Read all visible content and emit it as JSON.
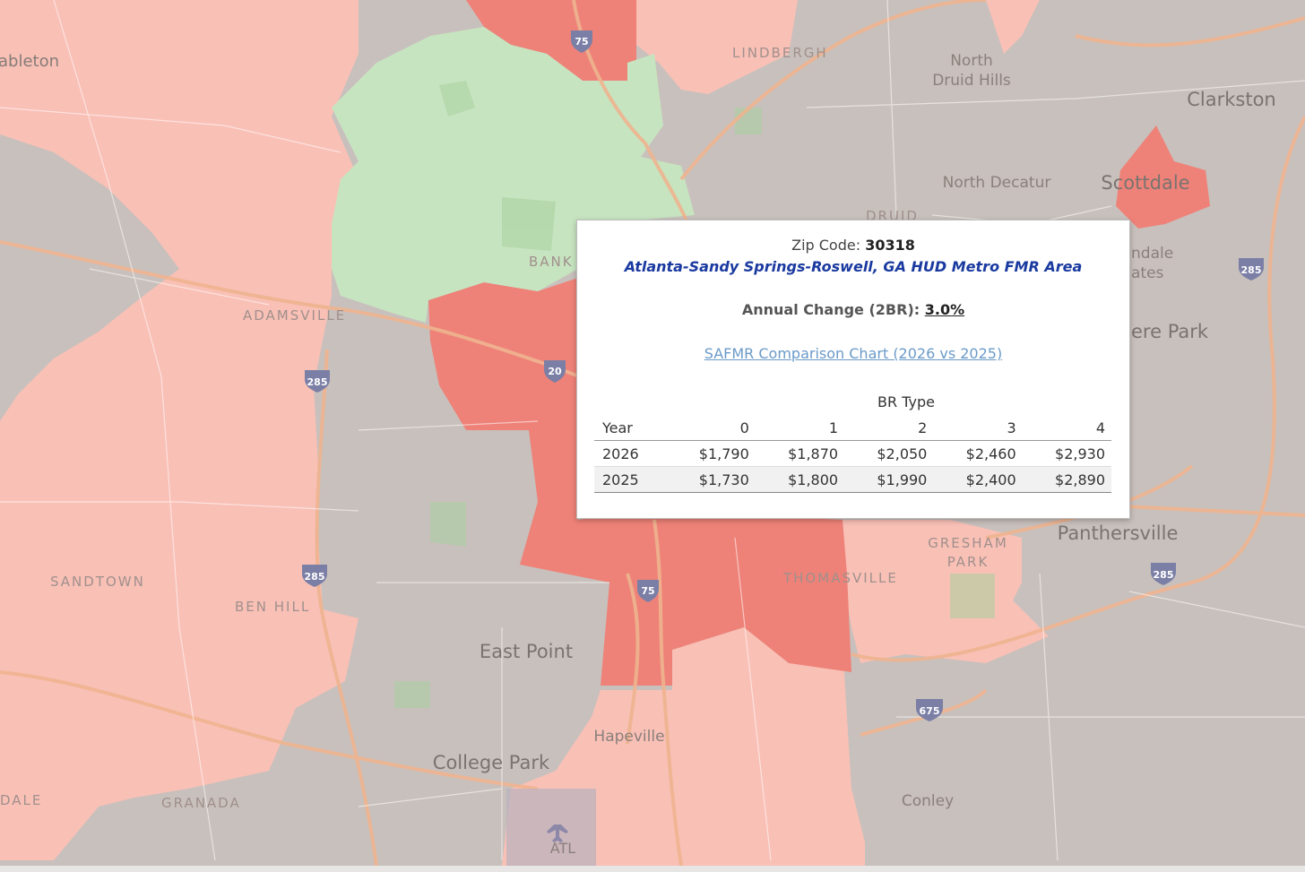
{
  "colors": {
    "base": "#c8c0bc",
    "light_red": "#f9c0b6",
    "mid_red": "#f4a89c",
    "dark_red": "#ee8278",
    "green": "#c7e4c0",
    "road": "#efb490",
    "tooltip_link": "#6a9ac8",
    "tooltip_area": "#1a3aa0"
  },
  "map_labels": {
    "mableton": "ableton",
    "lindbergh": "LINDBERGH",
    "north_druid_hills_1": "North",
    "north_druid_hills_2": "Druid Hills",
    "clarkston": "Clarkston",
    "north_decatur": "North Decatur",
    "scottdale": "Scottdale",
    "druid": "DRUID",
    "bank": "BANK",
    "adamsville": "ADAMSVILLE",
    "indale1": "ndale",
    "indale2": "ates",
    "belvedere": "ere Park",
    "sandtown": "SANDTOWN",
    "ben_hill": "BEN HILL",
    "gresham1": "GRESHAM",
    "gresham2": "PARK",
    "thomasville": "THOMASVILLE",
    "panthersville": "Panthersville",
    "east_point": "East Point",
    "hapeville": "Hapeville",
    "college_park": "College Park",
    "dale": "DALE",
    "granada": "GRANADA",
    "conley": "Conley",
    "atl": "ATL"
  },
  "shields": {
    "i75_top": "75",
    "i20": "20",
    "i285_w1": "285",
    "i285_w2": "285",
    "i285_e1": "285",
    "i285_e2": "285",
    "i75_mid": "75",
    "i675": "675"
  },
  "tooltip": {
    "zip_label": "Zip Code:",
    "zip_value": "30318",
    "area": "Atlanta-Sandy Springs-Roswell, GA HUD Metro FMR Area",
    "change_label": "Annual Change (2BR):",
    "change_value": "3.0%",
    "link": "SAFMR Comparison Chart (2026 vs 2025)",
    "br_type": "BR Type",
    "headers": [
      "Year",
      "0",
      "1",
      "2",
      "3",
      "4"
    ],
    "rows": [
      [
        "2026",
        "$1,790",
        "$1,870",
        "$2,050",
        "$2,460",
        "$2,930"
      ],
      [
        "2025",
        "$1,730",
        "$1,800",
        "$1,990",
        "$2,400",
        "$2,890"
      ]
    ]
  }
}
